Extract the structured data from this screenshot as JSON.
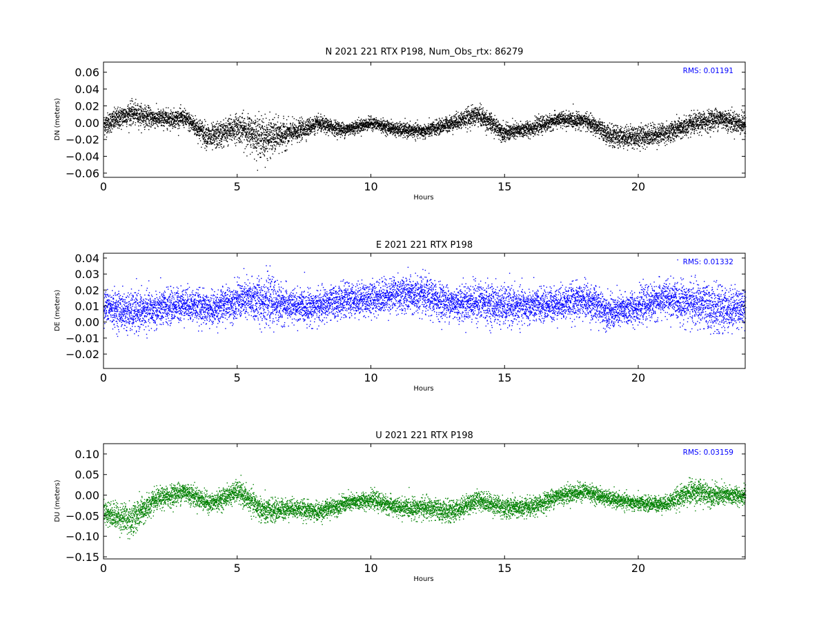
{
  "chart_data": [
    {
      "type": "scatter",
      "title": "N 2021 221 RTX  P198, Num_Obs_rtx: 86279",
      "xlabel": "Hours",
      "ylabel": "DN (meters)",
      "xlim": [
        0,
        24
      ],
      "ylim": [
        -0.065,
        0.072
      ],
      "xticks": [
        0,
        5,
        10,
        15,
        20
      ],
      "xtick_labels": [
        "0",
        "5",
        "10",
        "15",
        "20"
      ],
      "yticks": [
        -0.06,
        -0.04,
        -0.02,
        0.0,
        0.02,
        0.04,
        0.06
      ],
      "ytick_labels": [
        "−0.06",
        "−0.04",
        "−0.02",
        "0.00",
        "0.02",
        "0.04",
        "0.06"
      ],
      "annotation": "RMS:  0.01191",
      "color": "#000000",
      "annotation_color": "#0000ff",
      "grid": false,
      "series": [
        {
          "x": [
            0,
            1,
            2,
            3,
            4,
            5,
            6,
            7,
            8,
            9,
            10,
            11,
            12,
            13,
            14,
            15,
            16,
            17,
            18,
            19,
            20,
            21,
            22,
            23,
            24
          ],
          "y": [
            -0.002,
            0.012,
            0.005,
            0.006,
            -0.018,
            -0.005,
            -0.018,
            -0.012,
            -0.001,
            -0.008,
            0.0,
            -0.008,
            -0.01,
            0.0,
            0.01,
            -0.012,
            -0.006,
            0.004,
            0.003,
            -0.016,
            -0.016,
            -0.012,
            -0.002,
            0.006,
            -0.002
          ],
          "spread": [
            0.012,
            0.013,
            0.011,
            0.01,
            0.015,
            0.016,
            0.024,
            0.013,
            0.009,
            0.008,
            0.007,
            0.008,
            0.008,
            0.009,
            0.012,
            0.01,
            0.009,
            0.009,
            0.009,
            0.012,
            0.013,
            0.012,
            0.012,
            0.012,
            0.012
          ]
        }
      ]
    },
    {
      "type": "scatter",
      "title": "E 2021 221 RTX  P198",
      "xlabel": "Hours",
      "ylabel": "DE (meters)",
      "xlim": [
        0,
        24
      ],
      "ylim": [
        -0.029,
        0.043
      ],
      "xticks": [
        0,
        5,
        10,
        15,
        20
      ],
      "xtick_labels": [
        "0",
        "5",
        "10",
        "15",
        "20"
      ],
      "yticks": [
        -0.02,
        -0.01,
        0.0,
        0.01,
        0.02,
        0.03,
        0.04
      ],
      "ytick_labels": [
        "−0.02",
        "−0.01",
        "0.00",
        "0.01",
        "0.02",
        "0.03",
        "0.04"
      ],
      "annotation": "RMS:  0.01332",
      "color": "#0000ff",
      "annotation_color": "#0000ff",
      "grid": false,
      "series": [
        {
          "x": [
            0,
            1,
            2,
            3,
            4,
            5,
            6,
            7,
            8,
            9,
            10,
            11,
            12,
            13,
            14,
            15,
            16,
            17,
            18,
            19,
            20,
            21,
            22,
            23,
            24
          ],
          "y": [
            0.01,
            0.006,
            0.008,
            0.012,
            0.008,
            0.014,
            0.014,
            0.01,
            0.01,
            0.014,
            0.015,
            0.018,
            0.016,
            0.012,
            0.013,
            0.01,
            0.01,
            0.012,
            0.014,
            0.006,
            0.01,
            0.015,
            0.012,
            0.008,
            0.01
          ],
          "spread": [
            0.01,
            0.012,
            0.011,
            0.01,
            0.01,
            0.011,
            0.015,
            0.01,
            0.01,
            0.01,
            0.01,
            0.011,
            0.012,
            0.01,
            0.012,
            0.012,
            0.01,
            0.01,
            0.011,
            0.01,
            0.01,
            0.011,
            0.013,
            0.014,
            0.011
          ]
        }
      ]
    },
    {
      "type": "scatter",
      "title": "U 2021 221 RTX  P198",
      "xlabel": "Hours",
      "ylabel": "DU (meters)",
      "xlim": [
        0,
        24
      ],
      "ylim": [
        -0.155,
        0.125
      ],
      "xticks": [
        0,
        5,
        10,
        15,
        20
      ],
      "xtick_labels": [
        "0",
        "5",
        "10",
        "15",
        "20"
      ],
      "yticks": [
        -0.15,
        -0.1,
        -0.05,
        0.0,
        0.05,
        0.1
      ],
      "ytick_labels": [
        "−0.15",
        "−0.10",
        "−0.05",
        "0.00",
        "0.05",
        "0.10"
      ],
      "annotation": "RMS:  0.03159",
      "color": "#008000",
      "annotation_color": "#0000ff",
      "grid": false,
      "series": [
        {
          "x": [
            0,
            1,
            2,
            3,
            4,
            5,
            6,
            7,
            8,
            9,
            10,
            11,
            12,
            13,
            14,
            15,
            16,
            17,
            18,
            19,
            20,
            21,
            22,
            23,
            24
          ],
          "y": [
            -0.04,
            -0.06,
            -0.01,
            0.01,
            -0.02,
            0.01,
            -0.04,
            -0.03,
            -0.04,
            -0.02,
            -0.01,
            -0.03,
            -0.03,
            -0.04,
            -0.01,
            -0.03,
            -0.03,
            0.0,
            0.01,
            -0.01,
            -0.02,
            -0.02,
            0.01,
            0.0,
            0.0
          ],
          "spread": [
            0.025,
            0.04,
            0.025,
            0.025,
            0.022,
            0.025,
            0.03,
            0.022,
            0.022,
            0.02,
            0.02,
            0.022,
            0.025,
            0.025,
            0.022,
            0.025,
            0.022,
            0.022,
            0.02,
            0.018,
            0.018,
            0.018,
            0.03,
            0.025,
            0.02
          ]
        }
      ]
    }
  ]
}
